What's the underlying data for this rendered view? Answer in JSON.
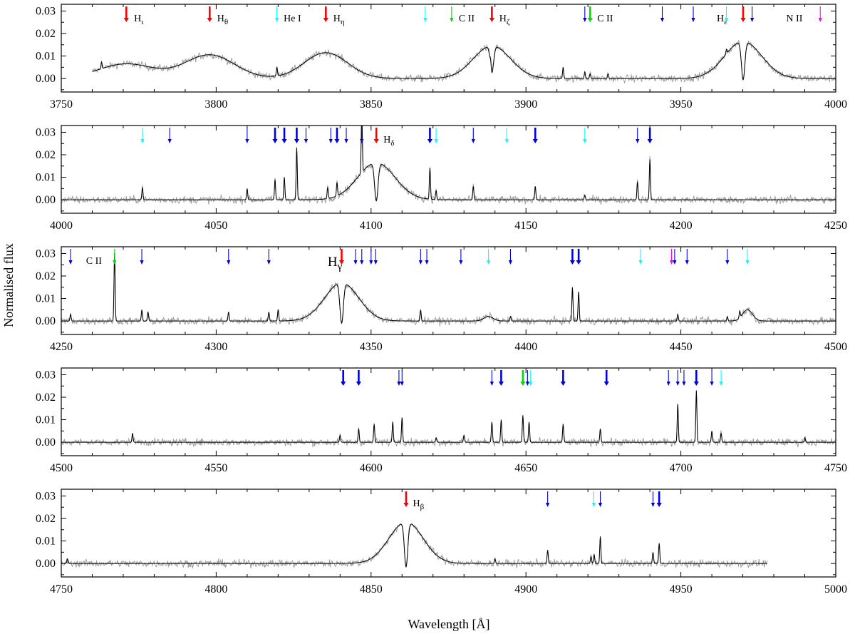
{
  "figure": {
    "ylabel": "Normalised flux",
    "xlabel": "Wavelength [Å]"
  },
  "colors": {
    "observed": "#a0a0a0",
    "model": "#000000",
    "balmer": "#ff0000",
    "carbon": "#00dd00",
    "helium": "#00ffff",
    "other": "#0000dd",
    "nitrogen": "#ff00ff"
  },
  "chart_data": [
    {
      "type": "line",
      "xlim": [
        3750,
        4000
      ],
      "ylim": [
        -0.006,
        0.033
      ],
      "xticks": [
        "3750",
        "3800",
        "3850",
        "3900",
        "3950",
        "4000"
      ],
      "yticks": [
        "0.00",
        "0.01",
        "0.02",
        "0.03"
      ],
      "series": [
        {
          "role": "observed",
          "coverage": [
            3760,
            4000
          ]
        },
        {
          "role": "model",
          "coverage": [
            3760,
            4000
          ]
        }
      ],
      "profiles": [
        {
          "x": 3771,
          "type": "emission",
          "height": 0.0065,
          "width": 9
        },
        {
          "x": 3797.9,
          "type": "emission",
          "height": 0.0105,
          "width": 8
        },
        {
          "x": 3835.4,
          "type": "emission",
          "height": 0.0115,
          "width": 7
        },
        {
          "x": 3889,
          "type": "emission_dip",
          "height": 0.0145,
          "width": 6,
          "dip": 0.012
        },
        {
          "x": 3970.1,
          "type": "emission_dip",
          "height": 0.0165,
          "width": 6,
          "dip": 0.017
        }
      ],
      "narrow_lines": [
        {
          "x": 3763,
          "h": 0.003
        },
        {
          "x": 3819.6,
          "h": 0.004
        },
        {
          "x": 3888.6,
          "h": 0.003
        },
        {
          "x": 3912,
          "h": 0.005
        },
        {
          "x": 3919,
          "h": 0.003
        },
        {
          "x": 3920.7,
          "h": 0.002
        },
        {
          "x": 3926.5,
          "h": 0.002
        },
        {
          "x": 3964.7,
          "h": 0.002
        }
      ],
      "markers": [
        {
          "x": 3771,
          "c": "balmer",
          "t": 2
        },
        {
          "x": 3797.9,
          "c": "balmer",
          "t": 2
        },
        {
          "x": 3819.6,
          "c": "helium",
          "t": 1
        },
        {
          "x": 3835.4,
          "c": "balmer",
          "t": 2
        },
        {
          "x": 3867.5,
          "c": "helium",
          "t": 1
        },
        {
          "x": 3876,
          "c": "carbon",
          "t": 1
        },
        {
          "x": 3889,
          "c": "balmer",
          "t": 2
        },
        {
          "x": 3919,
          "c": "other",
          "t": 1
        },
        {
          "x": 3920.7,
          "c": "carbon",
          "t": 2
        },
        {
          "x": 3944,
          "c": "other",
          "t": 1
        },
        {
          "x": 3954,
          "c": "other",
          "t": 1
        },
        {
          "x": 3964.7,
          "c": "helium",
          "t": 1
        },
        {
          "x": 3970.1,
          "c": "balmer",
          "t": 2
        },
        {
          "x": 3973,
          "c": "other",
          "t": 1
        },
        {
          "x": 3995,
          "c": "nitrogen",
          "t": 1
        }
      ],
      "labels": [
        {
          "x": 3773.5,
          "text": "H",
          "sub": "ι"
        },
        {
          "x": 3800.3,
          "text": "H",
          "sub": "θ"
        },
        {
          "x": 3821.8,
          "text": "He I"
        },
        {
          "x": 3837.8,
          "text": "H",
          "sub": "η"
        },
        {
          "x": 3878.3,
          "text": "C II"
        },
        {
          "x": 3891.4,
          "text": "H",
          "sub": "ζ"
        },
        {
          "x": 3923,
          "text": "C II"
        },
        {
          "x": 3961.6,
          "text": "H",
          "sub": "ε"
        },
        {
          "x": 3984,
          "text": "N II"
        }
      ]
    },
    {
      "type": "line",
      "xlim": [
        4000,
        4250
      ],
      "ylim": [
        -0.006,
        0.033
      ],
      "xticks": [
        "4000",
        "4050",
        "4100",
        "4150",
        "4200",
        "4250"
      ],
      "yticks": [
        "0.00",
        "0.01",
        "0.02",
        "0.03"
      ],
      "series": [
        {
          "role": "observed",
          "coverage": [
            4000,
            4250
          ]
        },
        {
          "role": "model",
          "coverage": [
            4000,
            4250
          ]
        }
      ],
      "profiles": [
        {
          "x": 4101.7,
          "type": "emission_dip",
          "height": 0.0165,
          "width": 6,
          "dip": 0.017
        }
      ],
      "narrow_lines": [
        {
          "x": 4026.2,
          "h": 0.0055
        },
        {
          "x": 4060,
          "h": 0.005
        },
        {
          "x": 4069,
          "h": 0.009
        },
        {
          "x": 4072,
          "h": 0.01
        },
        {
          "x": 4076,
          "h": 0.023
        },
        {
          "x": 4086,
          "h": 0.005
        },
        {
          "x": 4089,
          "h": 0.006
        },
        {
          "x": 4097,
          "h": 0.027
        },
        {
          "x": 4119,
          "h": 0.014
        },
        {
          "x": 4121,
          "h": 0.004
        },
        {
          "x": 4133,
          "h": 0.006
        },
        {
          "x": 4153,
          "h": 0.006
        },
        {
          "x": 4169,
          "h": 0.002
        },
        {
          "x": 4186,
          "h": 0.008
        },
        {
          "x": 4190,
          "h": 0.018
        }
      ],
      "markers": [
        {
          "x": 4026.2,
          "c": "helium",
          "t": 1
        },
        {
          "x": 4035,
          "c": "other",
          "t": 1
        },
        {
          "x": 4060,
          "c": "other",
          "t": 1
        },
        {
          "x": 4069,
          "c": "other",
          "t": 2
        },
        {
          "x": 4072,
          "c": "other",
          "t": 2
        },
        {
          "x": 4076,
          "c": "other",
          "t": 2
        },
        {
          "x": 4079,
          "c": "other",
          "t": 1
        },
        {
          "x": 4087,
          "c": "other",
          "t": 1
        },
        {
          "x": 4089,
          "c": "other",
          "t": 2
        },
        {
          "x": 4092,
          "c": "other",
          "t": 1
        },
        {
          "x": 4097,
          "c": "other",
          "t": 1
        },
        {
          "x": 4101.7,
          "c": "balmer",
          "t": 2
        },
        {
          "x": 4119,
          "c": "other",
          "t": 2
        },
        {
          "x": 4121,
          "c": "helium",
          "t": 1
        },
        {
          "x": 4133,
          "c": "other",
          "t": 1
        },
        {
          "x": 4143.8,
          "c": "helium",
          "t": 1
        },
        {
          "x": 4153,
          "c": "other",
          "t": 2
        },
        {
          "x": 4169,
          "c": "helium",
          "t": 1
        },
        {
          "x": 4186,
          "c": "other",
          "t": 1
        },
        {
          "x": 4190,
          "c": "other",
          "t": 2
        }
      ],
      "labels": [
        {
          "x": 4104,
          "text": "H",
          "sub": "δ"
        }
      ]
    },
    {
      "type": "line",
      "xlim": [
        4250,
        4500
      ],
      "ylim": [
        -0.006,
        0.033
      ],
      "xticks": [
        "4250",
        "4300",
        "4350",
        "4400",
        "4450",
        "4500"
      ],
      "yticks": [
        "0.00",
        "0.01",
        "0.02",
        "0.03"
      ],
      "series": [
        {
          "role": "observed",
          "coverage": [
            4250,
            4500
          ]
        },
        {
          "role": "model",
          "coverage": [
            4250,
            4500
          ]
        }
      ],
      "profiles": [
        {
          "x": 4340.5,
          "type": "emission_dip",
          "height": 0.017,
          "width": 5.5,
          "dip": 0.018
        },
        {
          "x": 4387.9,
          "type": "emission",
          "height": 0.002,
          "width": 1.5
        },
        {
          "x": 4471.5,
          "type": "emission",
          "height": 0.005,
          "width": 1.6
        }
      ],
      "narrow_lines": [
        {
          "x": 4253,
          "h": 0.003
        },
        {
          "x": 4267.2,
          "h": 0.03
        },
        {
          "x": 4276,
          "h": 0.005
        },
        {
          "x": 4278,
          "h": 0.004
        },
        {
          "x": 4304,
          "h": 0.004
        },
        {
          "x": 4317,
          "h": 0.004
        },
        {
          "x": 4320,
          "h": 0.005
        },
        {
          "x": 4366,
          "h": 0.005
        },
        {
          "x": 4395,
          "h": 0.002
        },
        {
          "x": 4415,
          "h": 0.015
        },
        {
          "x": 4417,
          "h": 0.013
        },
        {
          "x": 4449,
          "h": 0.003
        },
        {
          "x": 4465,
          "h": 0.002
        },
        {
          "x": 4469,
          "h": 0.003
        }
      ],
      "markers": [
        {
          "x": 4253,
          "c": "other",
          "t": 1
        },
        {
          "x": 4267.2,
          "c": "carbon",
          "t": 1
        },
        {
          "x": 4276,
          "c": "other",
          "t": 1
        },
        {
          "x": 4304,
          "c": "other",
          "t": 1
        },
        {
          "x": 4317,
          "c": "other",
          "t": 1
        },
        {
          "x": 4340.5,
          "c": "balmer",
          "t": 2
        },
        {
          "x": 4345,
          "c": "other",
          "t": 1
        },
        {
          "x": 4347,
          "c": "other",
          "t": 1
        },
        {
          "x": 4350,
          "c": "other",
          "t": 1
        },
        {
          "x": 4351.5,
          "c": "other",
          "t": 1
        },
        {
          "x": 4366,
          "c": "other",
          "t": 1
        },
        {
          "x": 4368,
          "c": "other",
          "t": 1
        },
        {
          "x": 4379,
          "c": "other",
          "t": 1
        },
        {
          "x": 4387.9,
          "c": "helium",
          "t": 1
        },
        {
          "x": 4395,
          "c": "other",
          "t": 1
        },
        {
          "x": 4415,
          "c": "other",
          "t": 2
        },
        {
          "x": 4417,
          "c": "other",
          "t": 2
        },
        {
          "x": 4437,
          "c": "helium",
          "t": 1
        },
        {
          "x": 4447,
          "c": "nitrogen",
          "t": 1
        },
        {
          "x": 4448,
          "c": "other",
          "t": 1
        },
        {
          "x": 4452,
          "c": "other",
          "t": 1
        },
        {
          "x": 4465,
          "c": "other",
          "t": 1
        },
        {
          "x": 4471.5,
          "c": "helium",
          "t": 1
        }
      ],
      "labels": [
        {
          "x": 4258,
          "text": "C II"
        },
        {
          "x": 4336,
          "text": "H",
          "sub": "γ",
          "large": true
        }
      ]
    },
    {
      "type": "line",
      "xlim": [
        4500,
        4750
      ],
      "ylim": [
        -0.006,
        0.033
      ],
      "xticks": [
        "4500",
        "4550",
        "4600",
        "4650",
        "4700",
        "4750"
      ],
      "yticks": [
        "0.00",
        "0.01",
        "0.02",
        "0.03"
      ],
      "series": [
        {
          "role": "observed",
          "coverage": [
            4500,
            4750
          ]
        },
        {
          "role": "model",
          "coverage": [
            4500,
            4750
          ]
        }
      ],
      "profiles": [],
      "narrow_lines": [
        {
          "x": 4523,
          "h": 0.004
        },
        {
          "x": 4590,
          "h": 0.003
        },
        {
          "x": 4596,
          "h": 0.006
        },
        {
          "x": 4601,
          "h": 0.008
        },
        {
          "x": 4607,
          "h": 0.009
        },
        {
          "x": 4610,
          "h": 0.011
        },
        {
          "x": 4621,
          "h": 0.002
        },
        {
          "x": 4630,
          "h": 0.003
        },
        {
          "x": 4639,
          "h": 0.009
        },
        {
          "x": 4642,
          "h": 0.01
        },
        {
          "x": 4649,
          "h": 0.012
        },
        {
          "x": 4651,
          "h": 0.009
        },
        {
          "x": 4662,
          "h": 0.008
        },
        {
          "x": 4674,
          "h": 0.006
        },
        {
          "x": 4699,
          "h": 0.017
        },
        {
          "x": 4705,
          "h": 0.023
        },
        {
          "x": 4710,
          "h": 0.005
        },
        {
          "x": 4713,
          "h": 0.004
        },
        {
          "x": 4740,
          "h": 0.002
        }
      ],
      "markers": [
        {
          "x": 4591,
          "c": "other",
          "t": 2
        },
        {
          "x": 4596,
          "c": "other",
          "t": 2
        },
        {
          "x": 4609,
          "c": "other",
          "t": 1
        },
        {
          "x": 4610,
          "c": "other",
          "t": 1
        },
        {
          "x": 4639,
          "c": "other",
          "t": 1
        },
        {
          "x": 4642,
          "c": "other",
          "t": 2
        },
        {
          "x": 4649,
          "c": "carbon",
          "t": 2
        },
        {
          "x": 4650.5,
          "c": "other",
          "t": 1
        },
        {
          "x": 4651.5,
          "c": "helium",
          "t": 1
        },
        {
          "x": 4662,
          "c": "other",
          "t": 2
        },
        {
          "x": 4676,
          "c": "other",
          "t": 2
        },
        {
          "x": 4696,
          "c": "other",
          "t": 1
        },
        {
          "x": 4699,
          "c": "other",
          "t": 1
        },
        {
          "x": 4701,
          "c": "other",
          "t": 1
        },
        {
          "x": 4705,
          "c": "other",
          "t": 2
        },
        {
          "x": 4710,
          "c": "other",
          "t": 1
        },
        {
          "x": 4713,
          "c": "helium",
          "t": 1
        }
      ],
      "labels": []
    },
    {
      "type": "line",
      "xlim": [
        4750,
        5000
      ],
      "ylim": [
        -0.006,
        0.033
      ],
      "xticks": [
        "4750",
        "4800",
        "4850",
        "4900",
        "4950",
        "5000"
      ],
      "yticks": [
        "0.00",
        "0.01",
        "0.02",
        "0.03"
      ],
      "series": [
        {
          "role": "observed",
          "coverage": [
            4750,
            4978
          ]
        },
        {
          "role": "model",
          "coverage": [
            4750,
            4978
          ]
        }
      ],
      "profiles": [
        {
          "x": 4861.3,
          "type": "emission_dip",
          "height": 0.0185,
          "width": 5.5,
          "dip": 0.02
        }
      ],
      "narrow_lines": [
        {
          "x": 4752,
          "h": 0.002
        },
        {
          "x": 4890,
          "h": 0.002
        },
        {
          "x": 4907,
          "h": 0.006
        },
        {
          "x": 4921,
          "h": 0.003
        },
        {
          "x": 4922,
          "h": 0.004
        },
        {
          "x": 4924,
          "h": 0.012
        },
        {
          "x": 4941,
          "h": 0.005
        },
        {
          "x": 4943,
          "h": 0.009
        }
      ],
      "markers": [
        {
          "x": 4861.3,
          "c": "balmer",
          "t": 2
        },
        {
          "x": 4907,
          "c": "other",
          "t": 1
        },
        {
          "x": 4921.9,
          "c": "helium",
          "t": 1
        },
        {
          "x": 4924,
          "c": "other",
          "t": 1
        },
        {
          "x": 4941,
          "c": "other",
          "t": 1
        },
        {
          "x": 4943,
          "c": "other",
          "t": 2
        }
      ],
      "labels": [
        {
          "x": 4863.5,
          "text": "H",
          "sub": "β"
        }
      ]
    }
  ]
}
